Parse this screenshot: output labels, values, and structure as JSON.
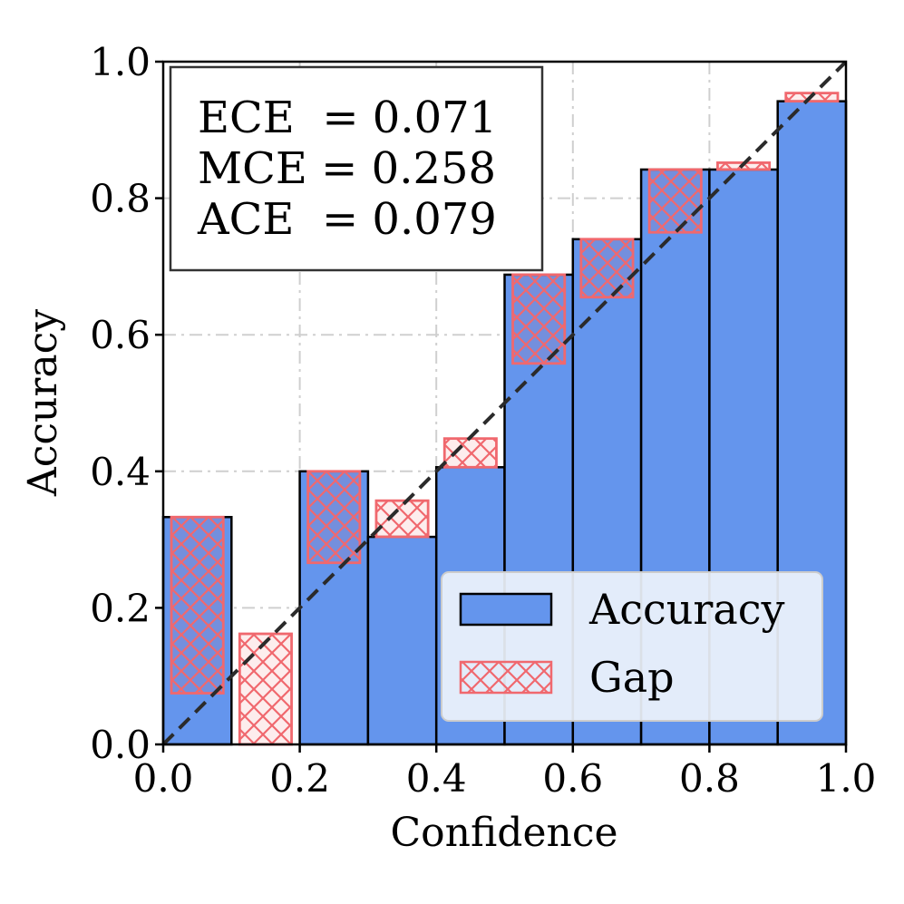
{
  "chart_data": {
    "type": "bar",
    "title": "",
    "xlabel": "Confidence",
    "ylabel": "Accuracy",
    "xlim": [
      0.0,
      1.0
    ],
    "ylim": [
      0.0,
      1.0
    ],
    "xticks": [
      "0.0",
      "0.2",
      "0.4",
      "0.6",
      "0.8",
      "1.0"
    ],
    "yticks": [
      "0.0",
      "0.2",
      "0.4",
      "0.6",
      "0.8",
      "1.0"
    ],
    "grid": true,
    "bins": [
      {
        "lo": 0.0,
        "hi": 0.1,
        "accuracy": 0.333,
        "gap_from": 0.075,
        "gap_to": 0.333
      },
      {
        "lo": 0.1,
        "hi": 0.2,
        "accuracy": 0.0,
        "gap_from": 0.0,
        "gap_to": 0.162
      },
      {
        "lo": 0.2,
        "hi": 0.3,
        "accuracy": 0.4,
        "gap_from": 0.266,
        "gap_to": 0.4
      },
      {
        "lo": 0.3,
        "hi": 0.4,
        "accuracy": 0.304,
        "gap_from": 0.304,
        "gap_to": 0.357
      },
      {
        "lo": 0.4,
        "hi": 0.5,
        "accuracy": 0.406,
        "gap_from": 0.406,
        "gap_to": 0.448
      },
      {
        "lo": 0.5,
        "hi": 0.6,
        "accuracy": 0.688,
        "gap_from": 0.558,
        "gap_to": 0.688
      },
      {
        "lo": 0.6,
        "hi": 0.7,
        "accuracy": 0.74,
        "gap_from": 0.655,
        "gap_to": 0.74
      },
      {
        "lo": 0.7,
        "hi": 0.8,
        "accuracy": 0.842,
        "gap_from": 0.75,
        "gap_to": 0.842
      },
      {
        "lo": 0.8,
        "hi": 0.9,
        "accuracy": 0.842,
        "gap_from": 0.842,
        "gap_to": 0.852
      },
      {
        "lo": 0.9,
        "hi": 1.0,
        "accuracy": 0.942,
        "gap_from": 0.942,
        "gap_to": 0.954
      }
    ],
    "diagonal": {
      "from": [
        0.0,
        0.0
      ],
      "to": [
        1.0,
        1.0
      ],
      "style": "dashed"
    },
    "stats": [
      {
        "label": "ECE  = 0.071"
      },
      {
        "label": "MCE = 0.258"
      },
      {
        "label": "ACE  = 0.079"
      }
    ],
    "legend": {
      "placement": "bottom-right",
      "entries": [
        {
          "label": "Accuracy",
          "kind": "accuracy"
        },
        {
          "label": "Gap",
          "kind": "gap"
        }
      ]
    },
    "colors": {
      "accuracy_fill": "#6495ED",
      "bar_edge": "#000000",
      "gap_edge": "#F0686E",
      "gap_fill_over": "rgba(240,104,110,0.12)",
      "diagonal": "#2b2b2b",
      "grid": "#cfcfcf",
      "stats_border": "#333333"
    }
  }
}
